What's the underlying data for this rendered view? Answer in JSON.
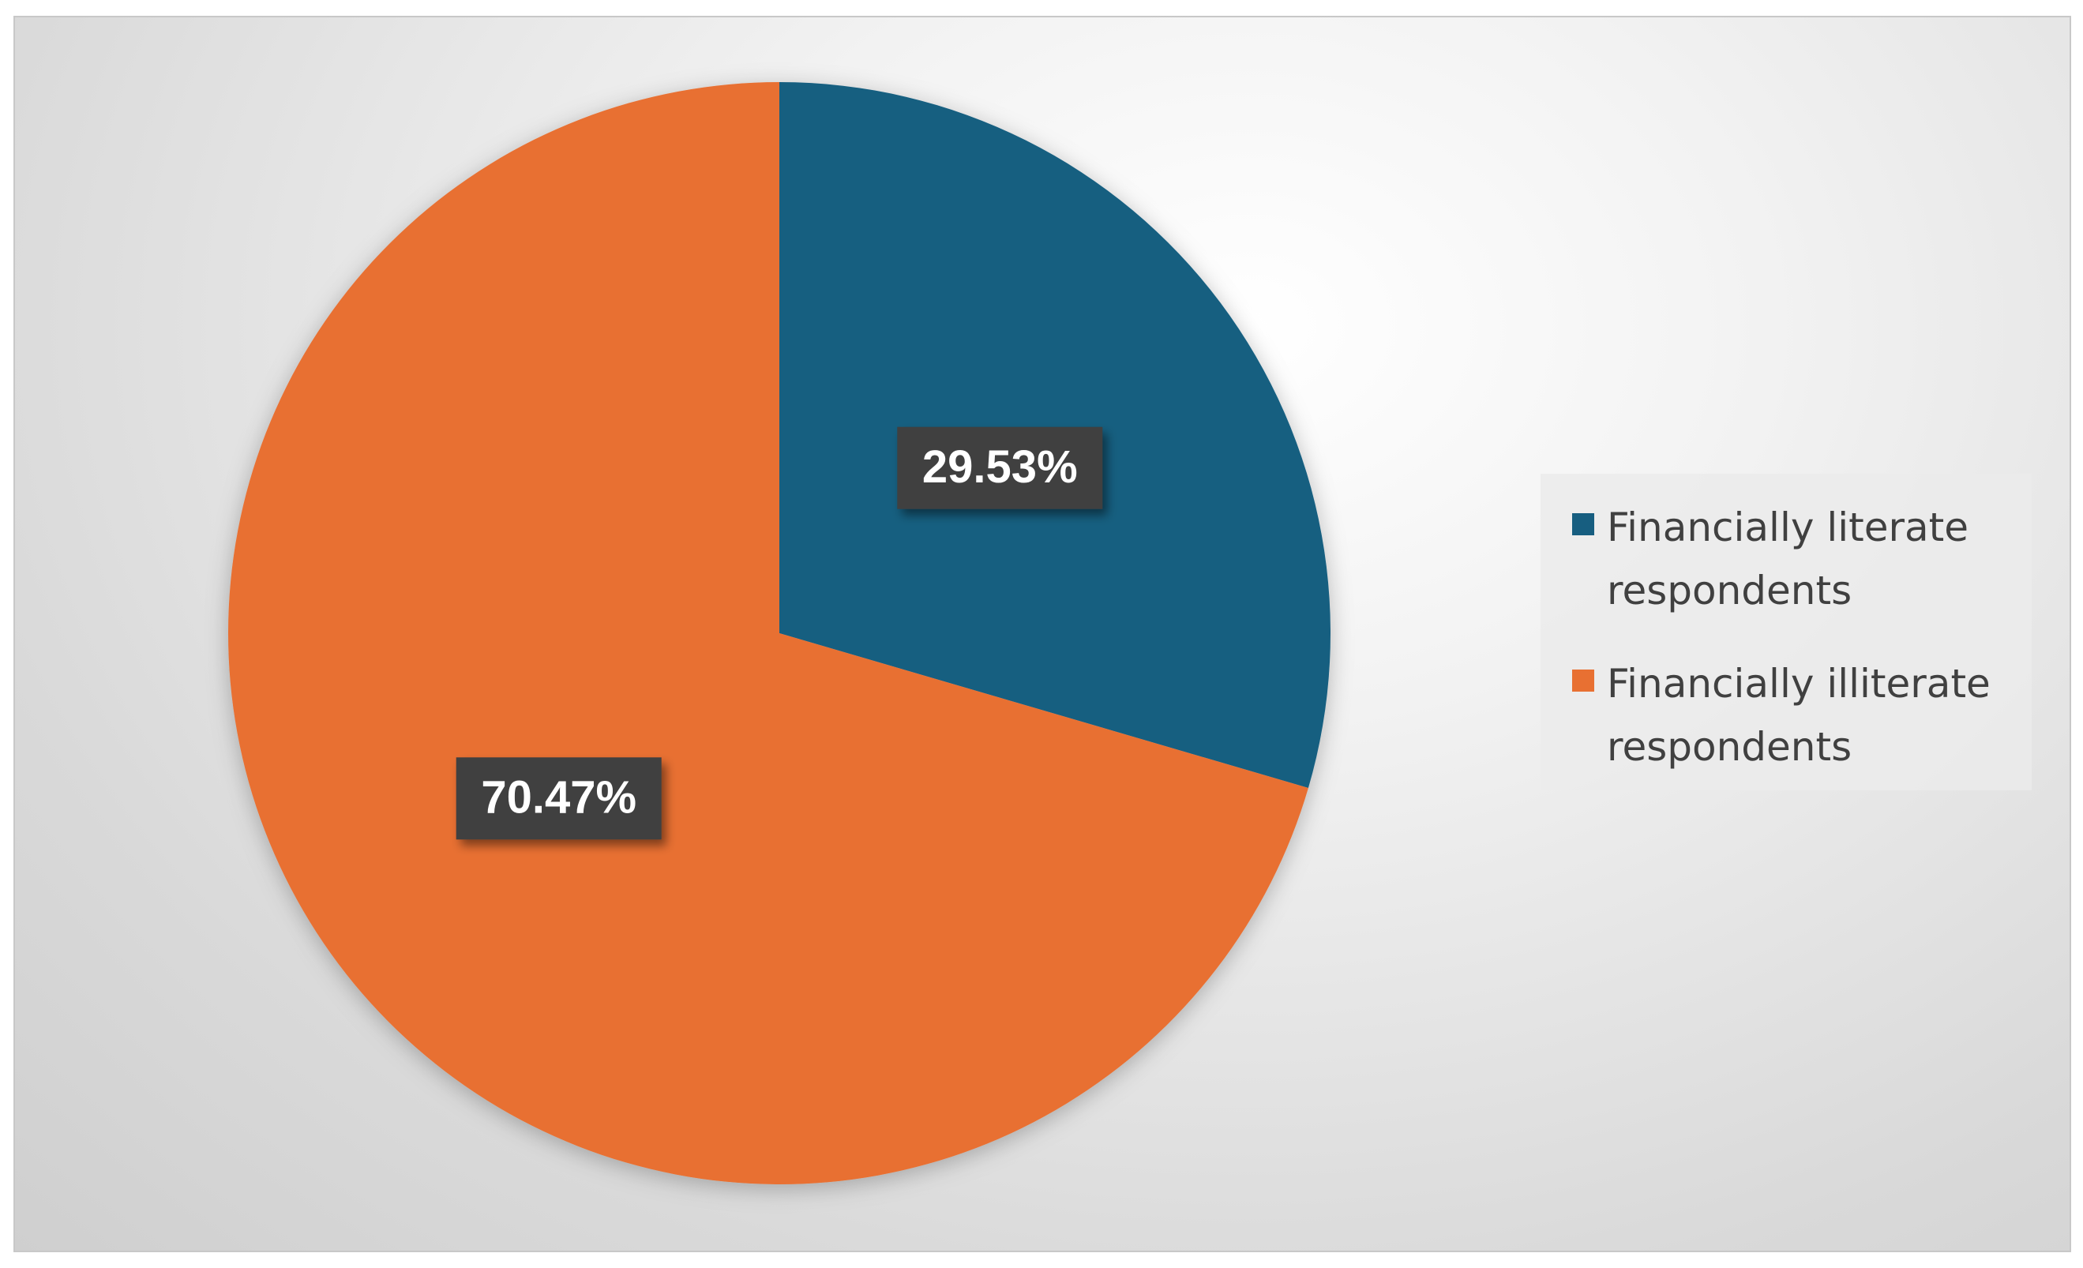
{
  "chart_data": {
    "type": "pie",
    "categories": [
      "Financially literate respondents",
      "Financially illiterate respondents"
    ],
    "values": [
      29.53,
      70.47
    ],
    "value_labels": [
      "29.53%",
      "70.47%"
    ],
    "colors": [
      "#175e80",
      "#e87032"
    ],
    "legend": "right"
  }
}
